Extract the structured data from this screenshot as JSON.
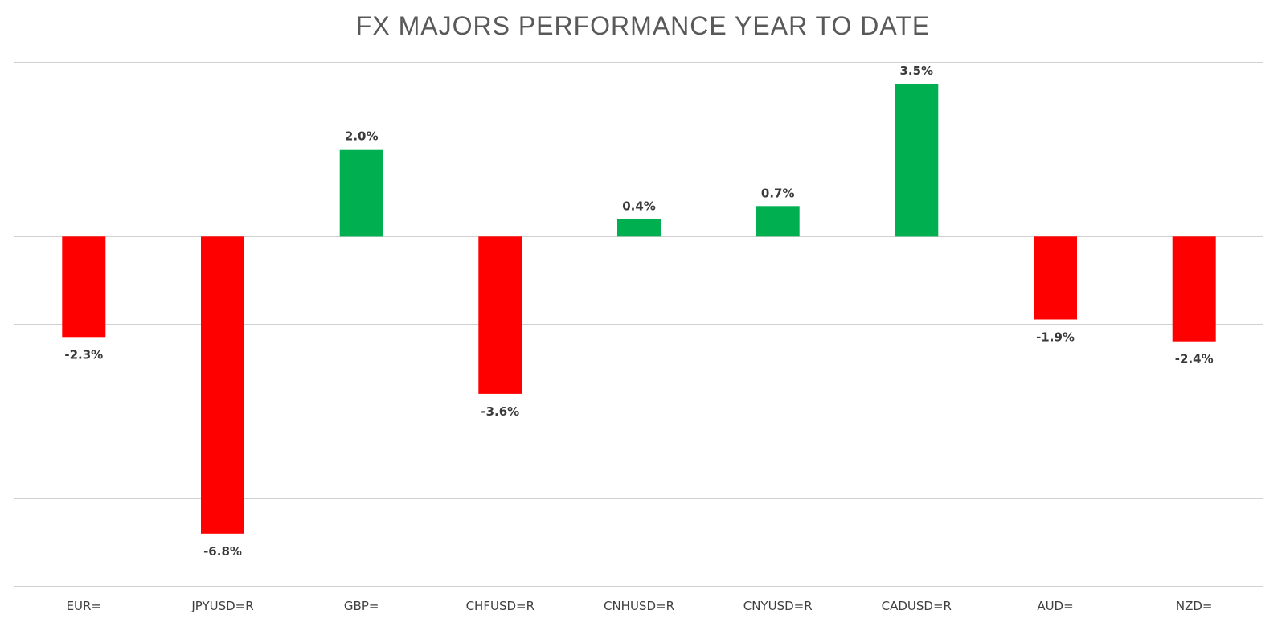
{
  "chart_data": {
    "type": "bar",
    "title": "FX MAJORS PERFORMANCE YEAR TO DATE",
    "xlabel": "",
    "ylabel": "",
    "categories": [
      "EUR=",
      "JPYUSD=R",
      "GBP=",
      "CHFUSD=R",
      "CNHUSD=R",
      "CNYUSD=R",
      "CADUSD=R",
      "AUD=",
      "NZD="
    ],
    "values": [
      -2.3,
      -6.8,
      2.0,
      -3.6,
      0.4,
      0.7,
      3.5,
      -1.9,
      -2.4
    ],
    "data_labels": [
      "-2.3%",
      "-6.8%",
      "2.0%",
      "-3.6%",
      "0.4%",
      "0.7%",
      "3.5%",
      "-1.9%",
      "-2.4%"
    ],
    "ylim": [
      -8,
      4
    ],
    "grid": true,
    "legend": "none",
    "colors": {
      "positive": "#00b050",
      "negative": "#ff0000",
      "grid": "#d0d0d0",
      "title": "#595959"
    }
  }
}
